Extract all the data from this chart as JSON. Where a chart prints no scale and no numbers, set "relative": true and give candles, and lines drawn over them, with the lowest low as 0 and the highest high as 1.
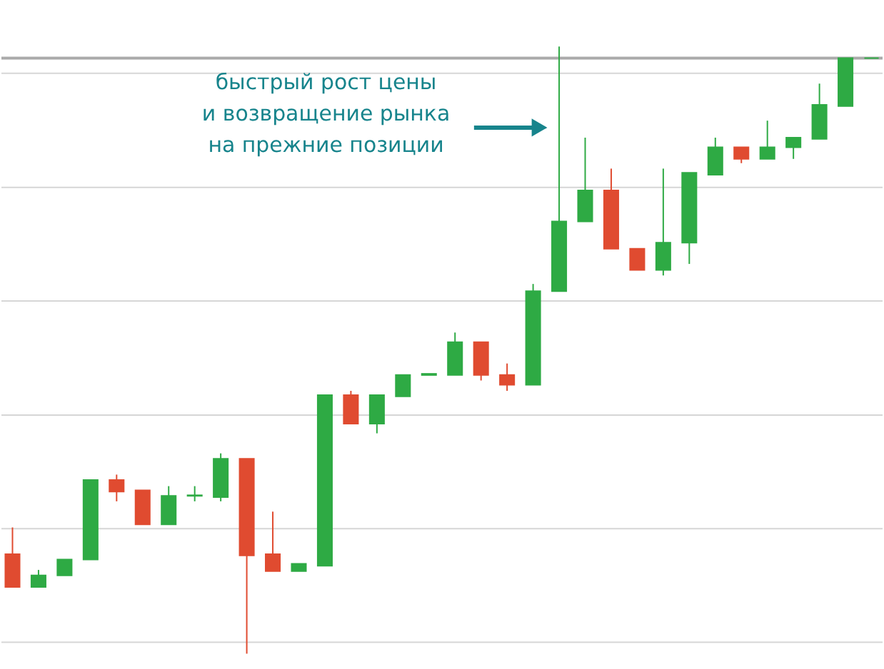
{
  "chart_data": {
    "type": "candlestick",
    "relative": true,
    "categories": [
      null,
      null,
      null,
      null,
      null,
      null,
      null,
      null,
      null,
      null,
      null,
      null,
      null,
      null,
      null,
      null,
      null,
      null,
      null,
      null,
      null,
      null,
      null,
      null,
      null,
      null,
      null,
      null,
      null,
      null,
      null,
      null,
      null,
      null
    ],
    "ohlc": [
      [
        0.164,
        0.208,
        0.11,
        0.11
      ],
      [
        0.11,
        0.138,
        0.11,
        0.129
      ],
      [
        0.129,
        0.155,
        0.129,
        0.155
      ],
      [
        0.155,
        0.286,
        0.155,
        0.286
      ],
      [
        0.286,
        0.295,
        0.251,
        0.267
      ],
      [
        0.269,
        0.269,
        0.213,
        0.213
      ],
      [
        0.213,
        0.276,
        0.213,
        0.26
      ],
      [
        0.26,
        0.276,
        0.251,
        0.261
      ],
      [
        0.258,
        0.33,
        0.251,
        0.321
      ],
      [
        0.321,
        0.321,
        0,
        0.162
      ],
      [
        0.164,
        0.234,
        0.136,
        0.136
      ],
      [
        0.136,
        0.148,
        0.136,
        0.148
      ],
      [
        0.145,
        0.426,
        0.145,
        0.426
      ],
      [
        0.426,
        0.433,
        0.379,
        0.379
      ],
      [
        0.379,
        0.426,
        0.363,
        0.426
      ],
      [
        0.424,
        0.459,
        0.424,
        0.459
      ],
      [
        0.459,
        0.461,
        0.459,
        0.461
      ],
      [
        0.459,
        0.529,
        0.459,
        0.513
      ],
      [
        0.513,
        0.513,
        0.45,
        0.459
      ],
      [
        0.459,
        0.478,
        0.433,
        0.443
      ],
      [
        0.443,
        0.609,
        0.443,
        0.597
      ],
      [
        0.597,
        1,
        0.597,
        0.712
      ],
      [
        0.712,
        0.85,
        0.712,
        0.763
      ],
      [
        0.763,
        0.799,
        0.667,
        0.667
      ],
      [
        0.667,
        0.667,
        0.632,
        0.632
      ],
      [
        0.632,
        0.799,
        0.623,
        0.677
      ],
      [
        0.677,
        0.792,
        0.642,
        0.792
      ],
      [
        0.789,
        0.85,
        0.789,
        0.834
      ],
      [
        0.834,
        0.834,
        0.808,
        0.815
      ],
      [
        0.815,
        0.878,
        0.815,
        0.834
      ],
      [
        0.834,
        0.85,
        0.815,
        0.85
      ],
      [
        0.848,
        0.939,
        0.848,
        0.904
      ],
      [
        0.902,
        0.981,
        0.902,
        0.981
      ],
      [
        0.981,
        0.981,
        0.981,
        0.981
      ]
    ],
    "colors": [
      "#e04b30",
      "#2eaa44",
      "#2eaa44",
      "#2eaa44",
      "#e04b30",
      "#e04b30",
      "#2eaa44",
      "#2eaa44",
      "#2eaa44",
      "#e04b30",
      "#e04b30",
      "#2eaa44",
      "#2eaa44",
      "#e04b30",
      "#2eaa44",
      "#2eaa44",
      "#2eaa44",
      "#2eaa44",
      "#e04b30",
      "#e04b30",
      "#2eaa44",
      "#2eaa44",
      "#2eaa44",
      "#e04b30",
      "#e04b30",
      "#2eaa44",
      "#2eaa44",
      "#2eaa44",
      "#e04b30",
      "#2eaa44",
      "#2eaa44",
      "#2eaa44",
      "#2eaa44",
      "#2eaa44"
    ],
    "grid": "y",
    "ref_lines": [
      {
        "axis": "y",
        "value": 0.981,
        "color": "#aaaaaa"
      }
    ],
    "annotations": [
      "быстрый рост цены\nи возвращение рынка\nна прежние позиции"
    ]
  }
}
